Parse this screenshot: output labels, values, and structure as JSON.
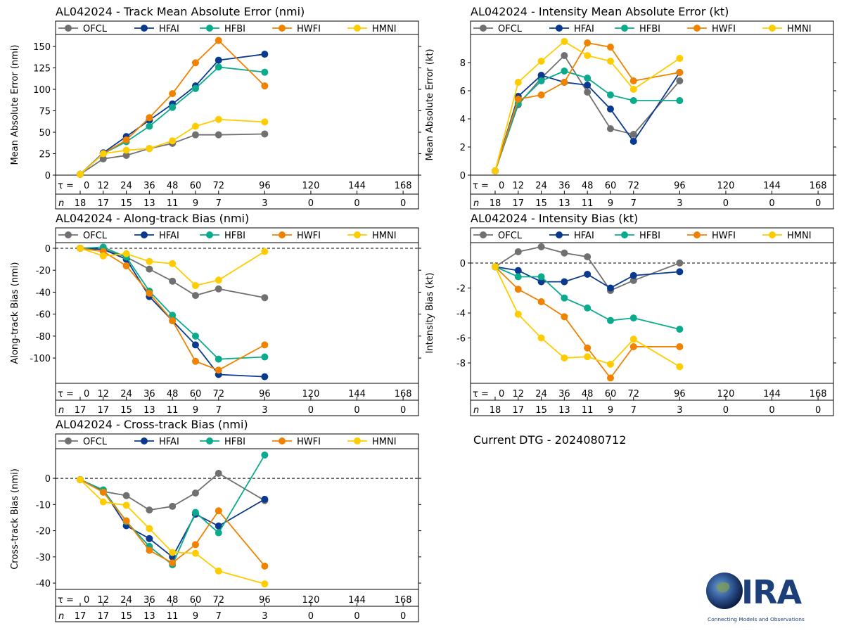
{
  "current_dtg": "Current DTG - 2024080712",
  "logo": {
    "text": "CIRA",
    "tagline": "Connecting Models and Observations"
  },
  "legend_names": [
    "OFCL",
    "HFAI",
    "HFBI",
    "HWFI",
    "HMNI"
  ],
  "colors": {
    "OFCL": "#707070",
    "HFAI": "#0a3a8f",
    "HFBI": "#0aab8c",
    "HWFI": "#f08200",
    "HMNI": "#ffcc00"
  },
  "tau_prefix": "τ =",
  "n_label": "n",
  "tau_labels": [
    0,
    12,
    24,
    36,
    48,
    60,
    72,
    96,
    120,
    144,
    168
  ],
  "chart_data": [
    {
      "type": "line",
      "title": "AL042024 - Track Mean Absolute Error (nmi)",
      "ylabel": "Mean Absolute Error (nmi)",
      "x": [
        0,
        12,
        24,
        36,
        48,
        60,
        72,
        96
      ],
      "ylim": [
        0,
        164
      ],
      "yticks": [
        0,
        25,
        50,
        75,
        100,
        125,
        150
      ],
      "zero_line": false,
      "n_counts": [
        18,
        17,
        15,
        13,
        11,
        9,
        7,
        3,
        0,
        0,
        0
      ],
      "series": [
        {
          "name": "OFCL",
          "values": [
            1,
            19,
            23,
            31,
            37,
            47,
            47,
            48
          ]
        },
        {
          "name": "HFAI",
          "values": [
            1,
            26,
            45,
            64,
            83,
            104,
            134,
            141
          ]
        },
        {
          "name": "HFBI",
          "values": [
            1,
            25,
            39,
            57,
            79,
            101,
            126,
            120
          ]
        },
        {
          "name": "HWFI",
          "values": [
            1,
            25,
            41,
            67,
            95,
            131,
            157,
            104
          ]
        },
        {
          "name": "HMNI",
          "values": [
            1,
            25,
            29,
            31,
            40,
            57,
            65,
            62
          ]
        }
      ]
    },
    {
      "type": "line",
      "title": "AL042024 - Intensity Mean Absolute Error (kt)",
      "ylabel": "Mean Absolute Error (kt)",
      "x": [
        0,
        12,
        24,
        36,
        48,
        60,
        72,
        96
      ],
      "ylim": [
        0,
        10
      ],
      "yticks": [
        0,
        2,
        4,
        6,
        8
      ],
      "zero_line": false,
      "n_counts": [
        18,
        17,
        15,
        13,
        11,
        9,
        7,
        3,
        0,
        0,
        0
      ],
      "series": [
        {
          "name": "OFCL",
          "values": [
            0.3,
            5.0,
            6.9,
            8.5,
            5.9,
            3.3,
            2.9,
            6.7
          ]
        },
        {
          "name": "HFAI",
          "values": [
            0.3,
            5.6,
            7.1,
            6.6,
            6.4,
            4.7,
            2.4,
            7.3
          ]
        },
        {
          "name": "HFBI",
          "values": [
            0.3,
            5.1,
            6.7,
            7.4,
            6.9,
            5.7,
            5.3,
            5.3
          ]
        },
        {
          "name": "HWFI",
          "values": [
            0.3,
            5.4,
            5.7,
            6.6,
            9.4,
            9.1,
            6.7,
            7.3
          ]
        },
        {
          "name": "HMNI",
          "values": [
            0.3,
            6.6,
            8.1,
            9.5,
            8.5,
            8.1,
            6.1,
            8.3
          ]
        }
      ]
    },
    {
      "type": "line",
      "title": "AL042024 - Along-track Bias (nmi)",
      "ylabel": "Along-track Bias (nmi)",
      "x": [
        0,
        12,
        24,
        36,
        48,
        60,
        72,
        96
      ],
      "ylim": [
        -123,
        5.1
      ],
      "yticks": [
        0,
        -20,
        -40,
        -60,
        -80,
        -100
      ],
      "zero_line": true,
      "n_counts": [
        17,
        17,
        15,
        13,
        11,
        9,
        7,
        3,
        0,
        0,
        0
      ],
      "series": [
        {
          "name": "OFCL",
          "values": [
            0,
            -1,
            -8,
            -19,
            -30,
            -43,
            -37,
            -45
          ]
        },
        {
          "name": "HFAI",
          "values": [
            0,
            -1,
            -10,
            -44,
            -66,
            -88,
            -115,
            -117
          ]
        },
        {
          "name": "HFBI",
          "values": [
            0,
            1,
            -8,
            -39,
            -61,
            -80,
            -101,
            -99
          ]
        },
        {
          "name": "HWFI",
          "values": [
            0,
            -3,
            -16,
            -41,
            -66,
            -103,
            -111,
            -88
          ]
        },
        {
          "name": "HMNI",
          "values": [
            0,
            -7,
            -5,
            -12,
            -14,
            -34,
            -29,
            -3
          ]
        }
      ]
    },
    {
      "type": "line",
      "title": "AL042024 - Intensity Bias (kt)",
      "ylabel": "Intensity Bias (kt)",
      "x": [
        0,
        12,
        24,
        36,
        48,
        60,
        72,
        96
      ],
      "ylim": [
        -9.63,
        1.63
      ],
      "yticks": [
        0,
        -2,
        -4,
        -6,
        -8
      ],
      "zero_line": true,
      "n_counts": [
        18,
        17,
        15,
        13,
        11,
        9,
        7,
        3,
        0,
        0,
        0
      ],
      "series": [
        {
          "name": "OFCL",
          "values": [
            -0.3,
            0.9,
            1.3,
            0.8,
            0.5,
            -2.2,
            -1.4,
            0
          ]
        },
        {
          "name": "HFAI",
          "values": [
            -0.3,
            -0.6,
            -1.5,
            -1.5,
            -0.9,
            -2.0,
            -1.0,
            -0.7
          ]
        },
        {
          "name": "HFBI",
          "values": [
            -0.3,
            -1.1,
            -1.1,
            -2.8,
            -3.6,
            -4.6,
            -4.4,
            -5.3
          ]
        },
        {
          "name": "HWFI",
          "values": [
            -0.3,
            -2.1,
            -3.1,
            -4.3,
            -6.8,
            -9.2,
            -6.7,
            -6.7
          ]
        },
        {
          "name": "HMNI",
          "values": [
            -0.3,
            -4.1,
            -6.0,
            -7.6,
            -7.5,
            -8.1,
            -6.1,
            -8.3
          ]
        }
      ]
    },
    {
      "type": "line",
      "title": "AL042024 - Cross-track Bias (nmi)",
      "ylabel": "Cross-track Bias (nmi)",
      "x": [
        0,
        12,
        24,
        36,
        48,
        60,
        72,
        96
      ],
      "ylim": [
        -42.4,
        11.3
      ],
      "yticks": [
        0,
        -10,
        -20,
        -30,
        -40
      ],
      "zero_line": true,
      "n_counts": [
        17,
        17,
        15,
        13,
        11,
        9,
        7,
        3,
        0,
        0,
        0
      ],
      "series": [
        {
          "name": "OFCL",
          "values": [
            -0.5,
            -5,
            -6.6,
            -12.1,
            -10.7,
            -5.6,
            1.9,
            -8.5
          ]
        },
        {
          "name": "HFAI",
          "values": [
            -0.5,
            -4.5,
            -18.1,
            -23,
            -30,
            -13.7,
            -18.2,
            -8
          ]
        },
        {
          "name": "HFBI",
          "values": [
            -0.5,
            -4.4,
            -16.5,
            -26,
            -33,
            -13,
            -20.8,
            8.9
          ]
        },
        {
          "name": "HWFI",
          "values": [
            -0.5,
            -5.3,
            -16.2,
            -27.5,
            -32.3,
            -25.3,
            -12.4,
            -33.5
          ]
        },
        {
          "name": "HMNI",
          "values": [
            -0.5,
            -9,
            -10.3,
            -19.2,
            -28.3,
            -28.6,
            -35.4,
            -40.3
          ]
        }
      ]
    }
  ]
}
